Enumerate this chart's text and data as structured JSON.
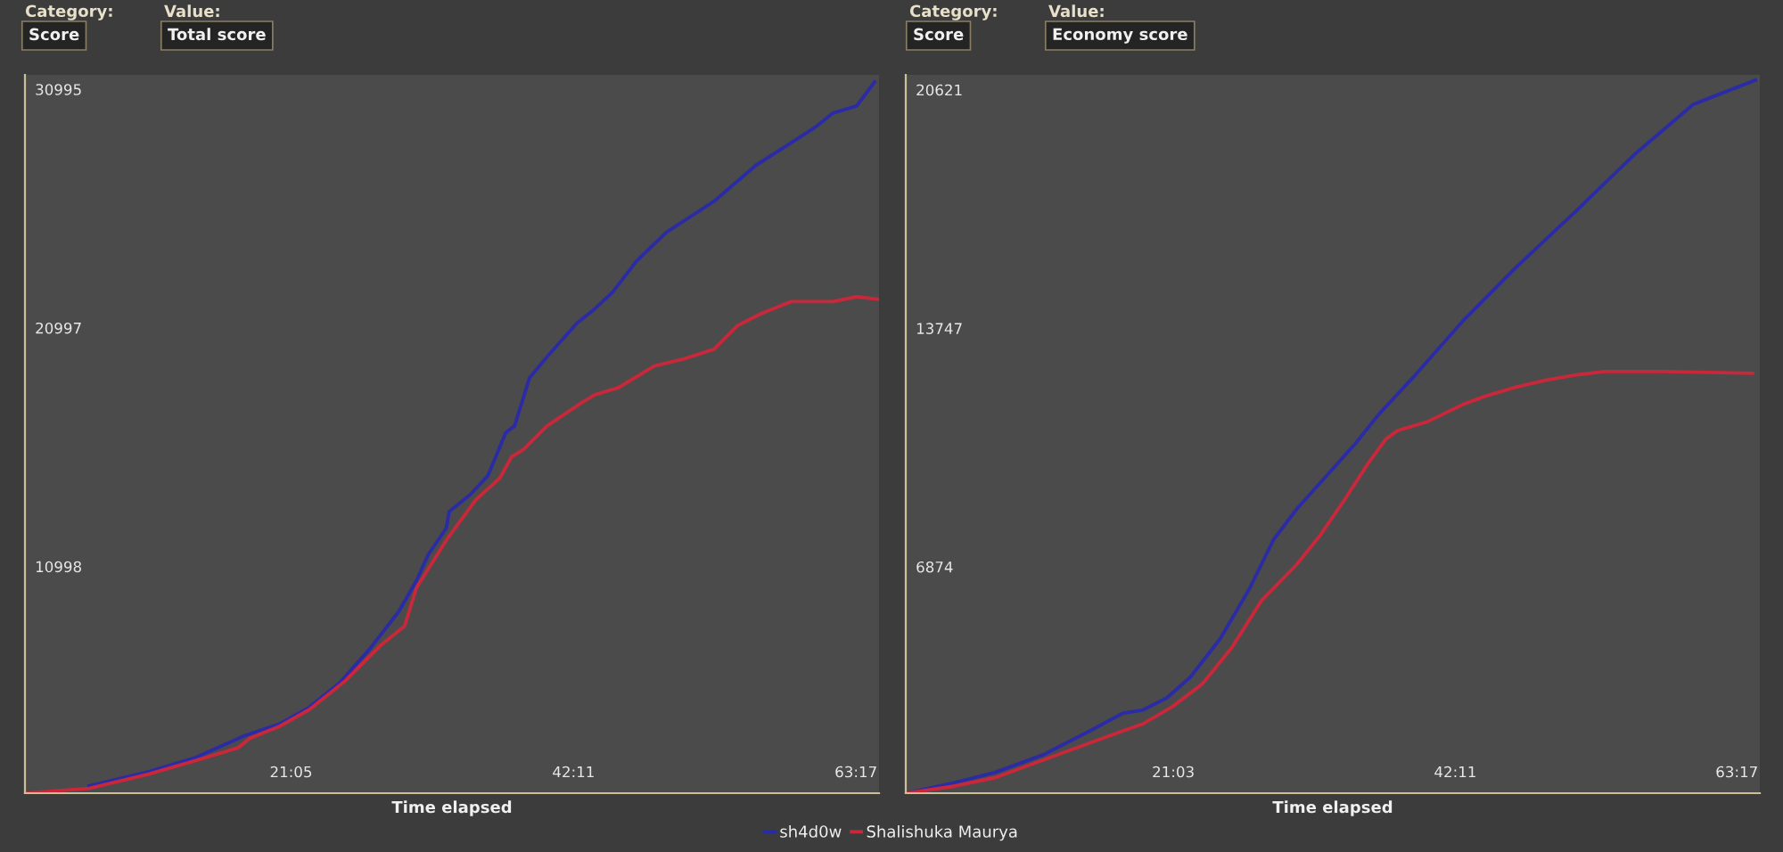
{
  "chart_data": [
    {
      "type": "line",
      "xlabel": "Time elapsed",
      "annotations": [
        "Category:",
        "Score",
        "Value:",
        "Total score"
      ],
      "xlim": [
        1.2,
        65
      ],
      "ylim": [
        1500,
        31600
      ],
      "xticks": [
        {
          "value": 21.08,
          "label": "21:05"
        },
        {
          "value": 42.18,
          "label": "42:11"
        },
        {
          "value": 63.28,
          "label": "63:17"
        }
      ],
      "yticks": [
        10998,
        20997,
        30995
      ],
      "grid": false,
      "legend": "bottom",
      "marker": "none",
      "line_style": "solid",
      "series": [
        {
          "name": "sh4d0w",
          "color": "#2b2ba6",
          "x": [
            6.0,
            10.44,
            14.0,
            17.56,
            20.22,
            22.44,
            24.67,
            26.89,
            29.11,
            30.44,
            31.33,
            32.67,
            32.89,
            34.44,
            35.78,
            37.11,
            37.78,
            38.89,
            40.22,
            42.44,
            43.78,
            45.11,
            46.89,
            49.11,
            52.67,
            55.78,
            58.0,
            60.22,
            61.56,
            63.33,
            64.67
          ],
          "values": [
            1800,
            2400,
            3000,
            3900,
            4400,
            5100,
            6100,
            7500,
            9100,
            10400,
            11500,
            12600,
            13300,
            14000,
            14800,
            16600,
            16900,
            18900,
            19800,
            21200,
            21800,
            22500,
            23800,
            25000,
            26300,
            27800,
            28600,
            29400,
            30000,
            30300,
            31300
          ]
        },
        {
          "name": "Shalishuka Maurya",
          "color": "#c8283a",
          "x": [
            1.33,
            6.0,
            10.44,
            13.56,
            17.11,
            18.0,
            20.22,
            22.44,
            25.11,
            27.78,
            29.56,
            30.44,
            32.67,
            34.89,
            36.67,
            37.56,
            38.44,
            40.22,
            42.89,
            43.78,
            45.56,
            48.22,
            50.44,
            52.67,
            54.44,
            56.22,
            58.44,
            61.56,
            63.33,
            64.89
          ],
          "values": [
            1500,
            1700,
            2300,
            2800,
            3400,
            3800,
            4300,
            5000,
            6200,
            7700,
            8500,
            10100,
            12100,
            13800,
            14700,
            15600,
            15900,
            16900,
            17900,
            18200,
            18500,
            19400,
            19700,
            20100,
            21100,
            21600,
            22100,
            22100,
            22300,
            22200
          ]
        }
      ]
    },
    {
      "type": "line",
      "xlabel": "Time elapsed",
      "annotations": [
        "Category:",
        "Score",
        "Value:",
        "Economy score"
      ],
      "xlim": [
        1.0,
        65
      ],
      "ylim": [
        350,
        21050
      ],
      "xticks": [
        {
          "value": 21.05,
          "label": "21:03"
        },
        {
          "value": 42.18,
          "label": "42:11"
        },
        {
          "value": 63.28,
          "label": "63:17"
        }
      ],
      "yticks": [
        6874,
        13747,
        20621
      ],
      "grid": false,
      "marker": "none",
      "line_style": "solid",
      "series": [
        {
          "color": "#2b2ba6",
          "x": [
            1.1,
            4.61,
            7.71,
            11.26,
            14.81,
            17.24,
            18.79,
            20.57,
            22.34,
            24.56,
            26.77,
            28.55,
            30.32,
            32.54,
            34.75,
            36.52,
            39.18,
            42.73,
            46.72,
            51.15,
            55.59,
            60.02,
            64.67
          ],
          "values": [
            350,
            650,
            950,
            1450,
            2150,
            2650,
            2750,
            3100,
            3700,
            4800,
            6250,
            7650,
            8550,
            9500,
            10450,
            11300,
            12400,
            13950,
            15500,
            17100,
            18750,
            20200,
            20900
          ]
        },
        {
          "color": "#c8283a",
          "x": [
            1.1,
            4.61,
            7.71,
            11.26,
            14.81,
            16.58,
            18.79,
            21.01,
            23.23,
            25.44,
            27.66,
            30.32,
            32.09,
            33.87,
            35.64,
            36.97,
            37.86,
            40.07,
            42.73,
            44.51,
            46.72,
            48.94,
            51.15,
            53.37,
            57.8,
            64.45
          ],
          "values": [
            350,
            550,
            800,
            1300,
            1800,
            2050,
            2350,
            2850,
            3500,
            4550,
            5900,
            6950,
            7800,
            8800,
            9850,
            10550,
            10800,
            11050,
            11550,
            11800,
            12050,
            12250,
            12400,
            12500,
            12500,
            12450
          ]
        }
      ]
    }
  ]
}
